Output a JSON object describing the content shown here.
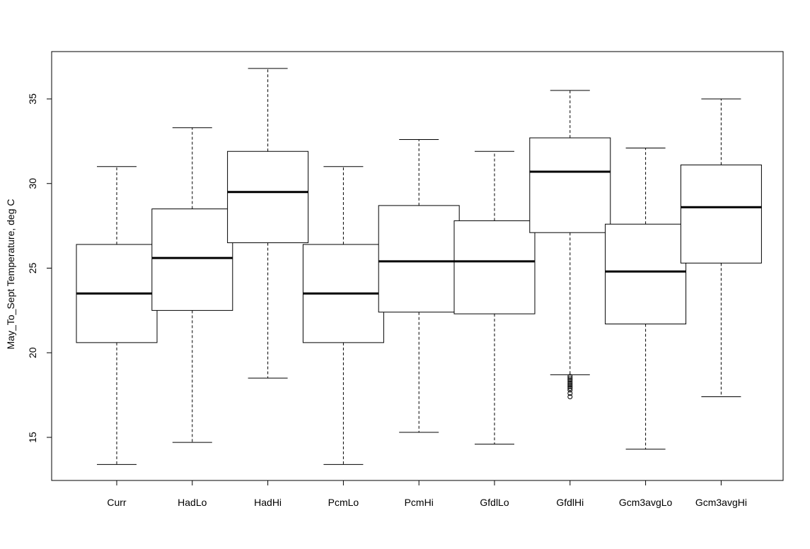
{
  "chart_data": {
    "type": "boxplot",
    "title": "",
    "xlabel": "",
    "ylabel": "May_To_Sept Temperature, deg C",
    "ylim": [
      12.5,
      37.5
    ],
    "yticks": [
      15,
      20,
      25,
      30,
      35
    ],
    "grid": false,
    "categories": [
      "Curr",
      "HadLo",
      "HadHi",
      "PcmLo",
      "PcmHi",
      "GfdlLo",
      "GfdlHi",
      "Gcm3avgLo",
      "Gcm3avgHi"
    ],
    "boxes": [
      {
        "label": "Curr",
        "whisker_low": 13.4,
        "q1": 20.6,
        "median": 23.5,
        "q3": 26.4,
        "whisker_high": 31.0,
        "outliers": []
      },
      {
        "label": "HadLo",
        "whisker_low": 14.7,
        "q1": 22.5,
        "median": 25.6,
        "q3": 28.5,
        "whisker_high": 33.3,
        "outliers": []
      },
      {
        "label": "HadHi",
        "whisker_low": 18.5,
        "q1": 26.5,
        "median": 29.5,
        "q3": 31.9,
        "whisker_high": 36.8,
        "outliers": []
      },
      {
        "label": "PcmLo",
        "whisker_low": 13.4,
        "q1": 20.6,
        "median": 23.5,
        "q3": 26.4,
        "whisker_high": 31.0,
        "outliers": []
      },
      {
        "label": "PcmHi",
        "whisker_low": 15.3,
        "q1": 22.4,
        "median": 25.4,
        "q3": 28.7,
        "whisker_high": 32.6,
        "outliers": []
      },
      {
        "label": "GfdlLo",
        "whisker_low": 14.6,
        "q1": 22.3,
        "median": 25.4,
        "q3": 27.8,
        "whisker_high": 31.9,
        "outliers": []
      },
      {
        "label": "GfdlHi",
        "whisker_low": 18.7,
        "q1": 27.1,
        "median": 30.7,
        "q3": 32.7,
        "whisker_high": 35.5,
        "outliers": [
          18.6,
          18.5,
          18.4,
          18.3,
          18.2,
          18.1,
          18.0,
          17.9,
          17.8,
          17.6,
          17.4
        ]
      },
      {
        "label": "Gcm3avgLo",
        "whisker_low": 14.3,
        "q1": 21.7,
        "median": 24.8,
        "q3": 27.6,
        "whisker_high": 32.1,
        "outliers": []
      },
      {
        "label": "Gcm3avgHi",
        "whisker_low": 17.4,
        "q1": 25.3,
        "median": 28.6,
        "q3": 31.1,
        "whisker_high": 35.0,
        "outliers": []
      }
    ]
  }
}
